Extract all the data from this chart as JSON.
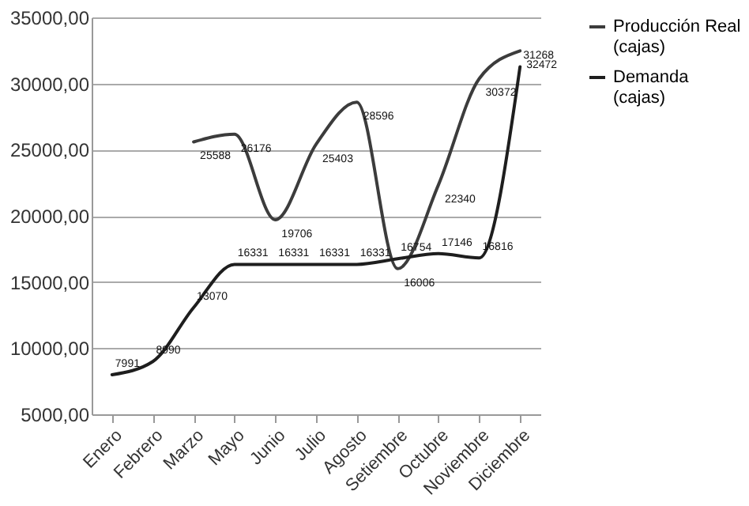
{
  "chart_data": {
    "type": "line",
    "categories": [
      "Enero",
      "Febrero",
      "Marzo",
      "Mayo",
      "Junio",
      "Julio",
      "Agosto",
      "Setiembre",
      "Octubre",
      "Noviembre",
      "Diciembre"
    ],
    "series": [
      {
        "name": "Producción Real (cajas)",
        "color": "#3c3c3c",
        "values": [
          null,
          null,
          25588,
          26176,
          19706,
          25403,
          28596,
          16006,
          22340,
          30372,
          32472
        ]
      },
      {
        "name": "Demanda (cajas)",
        "color": "#1e1e1e",
        "values": [
          7991,
          8990,
          13070,
          16331,
          16331,
          16331,
          16331,
          16754,
          17146,
          16816,
          31268
        ]
      }
    ],
    "ylim": [
      5000,
      35000
    ],
    "yticks": [
      {
        "value": 5000,
        "label": "5000,00"
      },
      {
        "value": 10000,
        "label": "10000,00"
      },
      {
        "value": 15000,
        "label": "15000,00"
      },
      {
        "value": 20000,
        "label": "20000,00"
      },
      {
        "value": 25000,
        "label": "25000,00"
      },
      {
        "value": 30000,
        "label": "30000,00"
      },
      {
        "value": 35000,
        "label": "35000,00"
      }
    ],
    "grid": "y",
    "legend": "right",
    "data_labels": true,
    "marker": "none",
    "line_style": "solid"
  }
}
